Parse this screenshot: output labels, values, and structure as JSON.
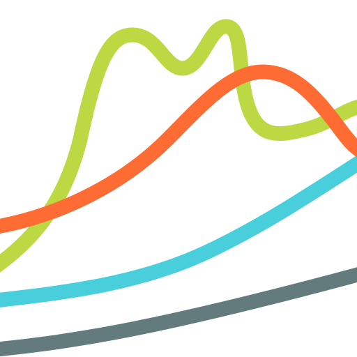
{
  "artwork": {
    "background": "#ffffff",
    "strokes": [
      {
        "id": "slate-stroke",
        "color": "#637b7c"
      },
      {
        "id": "cyan-stroke",
        "color": "#48cfdb"
      },
      {
        "id": "lime-stroke",
        "color": "#bcd843"
      },
      {
        "id": "orange-stroke",
        "color": "#ff6c33"
      }
    ]
  }
}
